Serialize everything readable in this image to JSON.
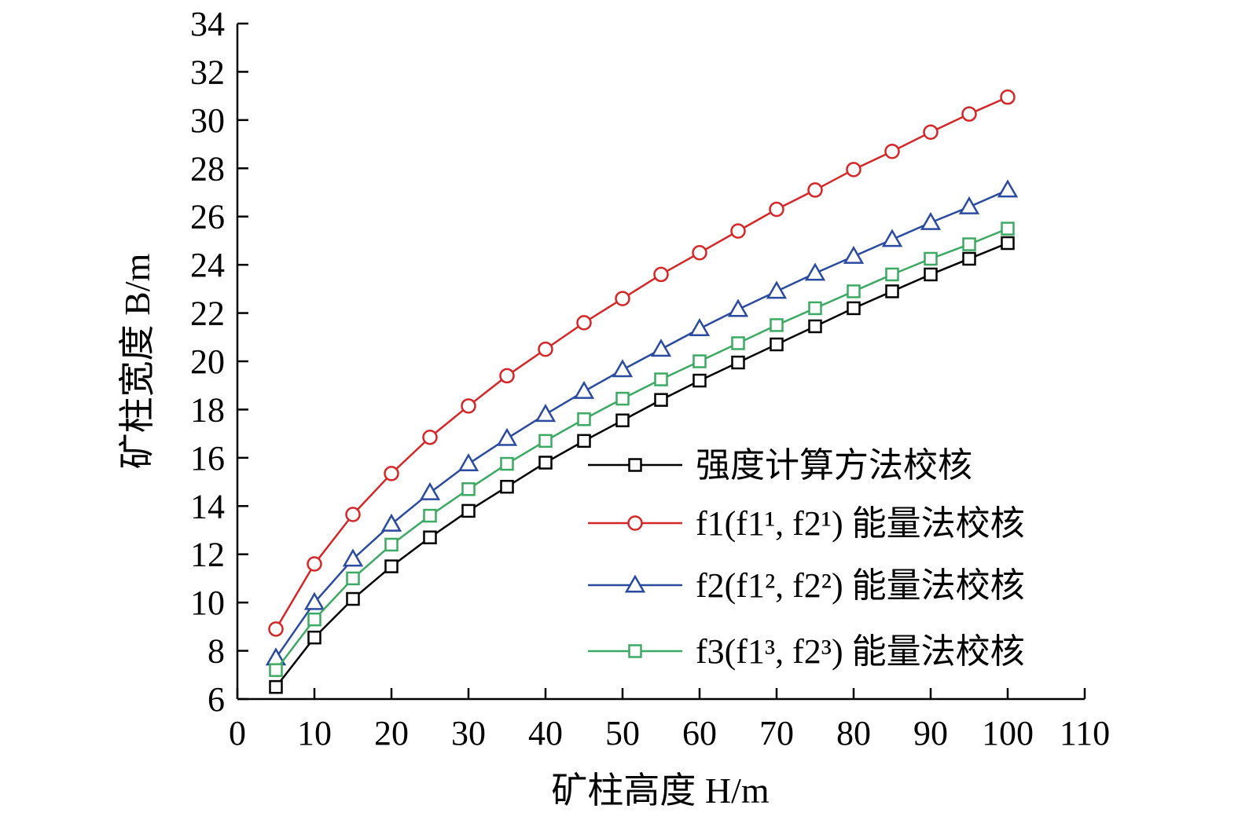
{
  "chart_data": {
    "type": "line",
    "title": "",
    "xlabel": "矿柱高度 H/m",
    "ylabel": "矿柱宽度 B/m",
    "xlim": [
      0,
      110
    ],
    "ylim": [
      6,
      34
    ],
    "x_ticks": [
      "0",
      "10",
      "20",
      "30",
      "40",
      "50",
      "60",
      "70",
      "80",
      "90",
      "100",
      "110"
    ],
    "y_ticks": [
      "6",
      "8",
      "10",
      "12",
      "14",
      "16",
      "18",
      "20",
      "22",
      "24",
      "26",
      "28",
      "30",
      "32",
      "34"
    ],
    "grid": false,
    "legend_position": "lower-right",
    "x": [
      5,
      10,
      15,
      20,
      25,
      30,
      35,
      40,
      45,
      50,
      55,
      60,
      65,
      70,
      75,
      80,
      85,
      90,
      95,
      100
    ],
    "series": [
      {
        "name": "强度计算方法校核",
        "color": "#000000",
        "marker": "square",
        "values": [
          6.5,
          8.55,
          10.15,
          11.5,
          12.7,
          13.8,
          14.8,
          15.8,
          16.7,
          17.55,
          18.4,
          19.2,
          19.95,
          20.7,
          21.45,
          22.2,
          22.9,
          23.6,
          24.25,
          24.9
        ]
      },
      {
        "name": "f1(f1¹, f2¹) 能量法校核",
        "color": "#d62728",
        "marker": "circle",
        "values": [
          8.9,
          11.6,
          13.65,
          15.35,
          16.85,
          18.15,
          19.4,
          20.5,
          21.6,
          22.6,
          23.6,
          24.5,
          25.4,
          26.3,
          27.1,
          27.95,
          28.7,
          29.5,
          30.25,
          30.95
        ]
      },
      {
        "name": "f2(f1², f2²) 能量法校核",
        "color": "#2b4ba0",
        "marker": "triangle",
        "values": [
          7.7,
          10.0,
          11.8,
          13.25,
          14.55,
          15.75,
          16.8,
          17.8,
          18.75,
          19.65,
          20.5,
          21.35,
          22.15,
          22.9,
          23.65,
          24.35,
          25.05,
          25.75,
          26.4,
          27.1
        ]
      },
      {
        "name": "f3(f1³, f2³) 能量法校核",
        "color": "#3daa64",
        "marker": "square",
        "values": [
          7.2,
          9.3,
          11.0,
          12.4,
          13.6,
          14.7,
          15.75,
          16.7,
          17.6,
          18.45,
          19.25,
          20.0,
          20.75,
          21.5,
          22.2,
          22.9,
          23.6,
          24.25,
          24.85,
          25.5
        ]
      }
    ]
  }
}
